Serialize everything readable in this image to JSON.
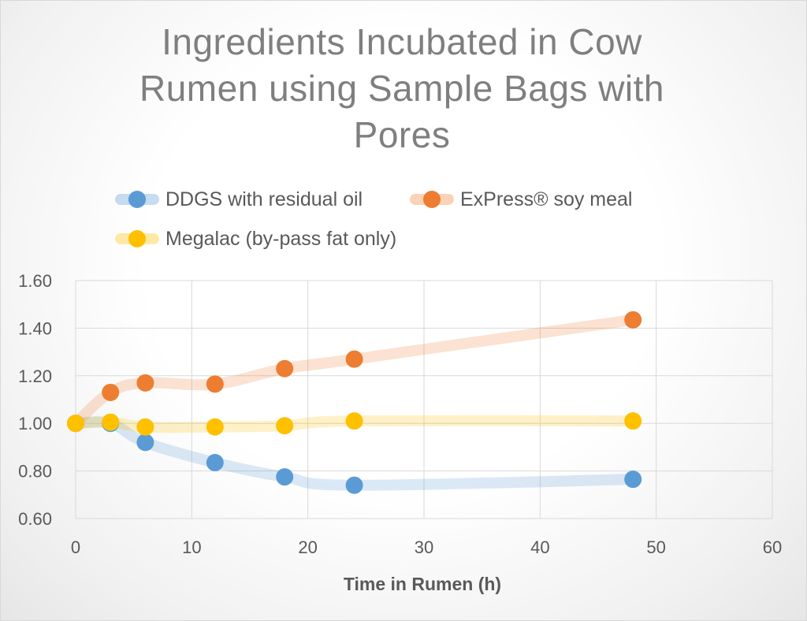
{
  "chart_data": {
    "type": "line",
    "title": "Ingredients Incubated in Cow Rumen using Sample Bags with Pores",
    "title_lines": [
      "Ingredients Incubated in Cow",
      "Rumen using Sample Bags with",
      "Pores"
    ],
    "xlabel": "Time in Rumen (h)",
    "ylabel": "",
    "xlim": [
      0,
      60
    ],
    "ylim": [
      0.6,
      1.6
    ],
    "x_ticks": [
      "0",
      "10",
      "20",
      "30",
      "40",
      "50",
      "60"
    ],
    "y_ticks": [
      "0.60",
      "0.80",
      "1.00",
      "1.20",
      "1.40",
      "1.60"
    ],
    "grid": true,
    "legend_position": "top",
    "x": [
      0,
      3,
      6,
      12,
      18,
      24,
      48
    ],
    "series": [
      {
        "name": "DDGS with residual oil",
        "color": "#5B9BD5",
        "values": [
          1.0,
          1.0,
          0.92,
          0.835,
          0.775,
          0.74,
          0.765
        ]
      },
      {
        "name": "ExPress® soy meal",
        "color": "#ED7D31",
        "values": [
          1.0,
          1.13,
          1.17,
          1.165,
          1.23,
          1.27,
          1.435
        ]
      },
      {
        "name": "Megalac (by-pass fat only)",
        "color": "#FFC000",
        "values": [
          1.0,
          1.005,
          0.985,
          0.985,
          0.99,
          1.01,
          1.01
        ]
      }
    ]
  }
}
